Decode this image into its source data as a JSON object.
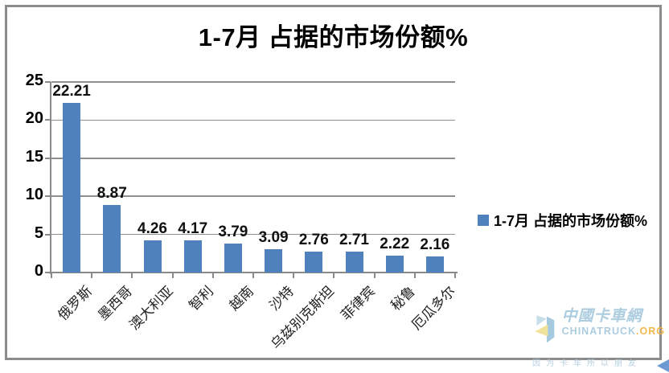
{
  "title": "1-7月 占据的市场份额%",
  "legend": {
    "label": "1-7月 占据的市场份额%",
    "swatch_color": "#4f81bd"
  },
  "chart_data": {
    "type": "bar",
    "title": "1-7月 占据的市场份额%",
    "categories": [
      "俄罗斯",
      "墨西哥",
      "澳大利亚",
      "智利",
      "越南",
      "沙特",
      "乌兹别克斯坦",
      "菲律宾",
      "秘鲁",
      "厄瓜多尔"
    ],
    "values": [
      22.21,
      8.87,
      4.26,
      4.17,
      3.79,
      3.09,
      2.76,
      2.71,
      2.22,
      2.16
    ],
    "data_labels": [
      "22.21",
      "8.87",
      "4.26",
      "4.17",
      "3.79",
      "3.09",
      "2.76",
      "2.71",
      "2.22",
      "2.16"
    ],
    "xlabel": "",
    "ylabel": "",
    "ylim": [
      0,
      25
    ],
    "yticks": [
      0,
      5,
      10,
      15,
      20,
      25
    ],
    "grid": true,
    "legend_position": "right",
    "legend_entries": [
      "1-7月 占据的市场份额%"
    ],
    "bar_color": "#4f81bd",
    "gridline_color": "#8f8f8f"
  },
  "watermark": {
    "name_cn": "中國卡車網",
    "name_en": "CHINATRUCK",
    "domain_suffix": ".ORG",
    "slogan": "因为卡车所以朋友",
    "brand_blue": "#a6c8dd",
    "brand_orange": "#f5b23c",
    "brand_yellow": "#f0e093"
  }
}
